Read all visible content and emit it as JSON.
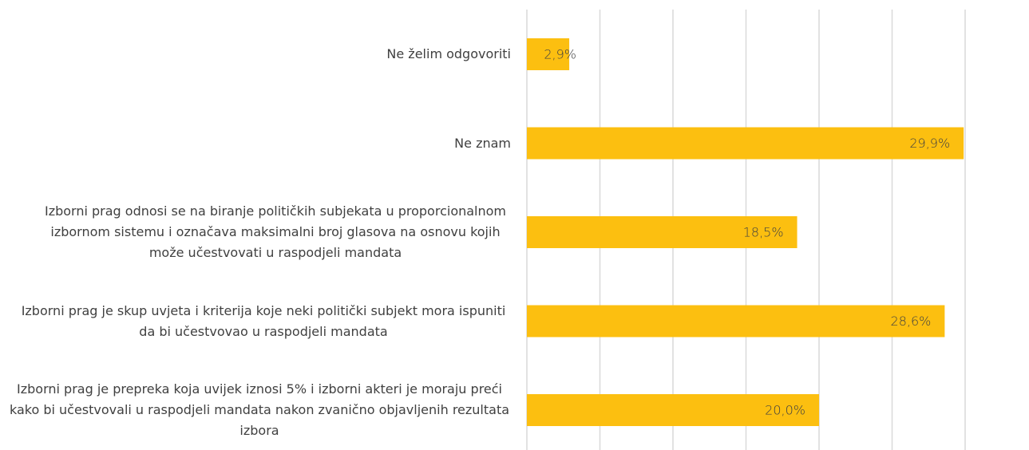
{
  "chart_data": {
    "type": "bar",
    "orientation": "horizontal",
    "categories": [
      "Ne želim odgovoriti",
      "Ne znam",
      "Izborni prag odnosi se na biranje političkih subjekata u proporcionalnom izbornom sistemu i označava maksimalni broj glasova na osnovu kojih može učestvovati u raspodjeli mandata",
      "Izborni prag je skup uvjeta i kriterija koje neki politički subjekt mora ispuniti da bi učestvovao u raspodjeli mandata",
      "Izborni prag je prepreka koja uvijek iznosi 5% i izborni akteri je moraju preći kako bi učestvovali u raspodjeli mandata nakon zvanično objavljenih rezultata izbora"
    ],
    "values": [
      2.9,
      29.9,
      18.5,
      28.6,
      20.0
    ],
    "value_labels": [
      "2,9%",
      "29,9%",
      "18,5%",
      "28,6%",
      "20,0%"
    ],
    "color": "#fcbf10",
    "xlim": [
      0,
      30
    ],
    "xticks": [
      0,
      5,
      10,
      15,
      20,
      25,
      30
    ],
    "grid": true
  }
}
